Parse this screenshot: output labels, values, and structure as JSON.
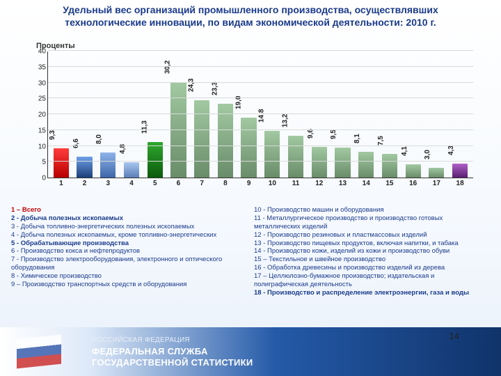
{
  "title": "Удельный вес организаций промышленного производства, осуществлявших технологические инновации, по видам экономической деятельности: 2010 г.",
  "ylabel": "Проценты",
  "page_number": "14",
  "chart": {
    "type": "bar",
    "ylim": [
      0,
      40
    ],
    "ytick_step": 5,
    "yticks": [
      0,
      5,
      10,
      15,
      20,
      25,
      30,
      35,
      40
    ],
    "grid_color": "#d9d9d9",
    "axis_color": "#333333",
    "bars": [
      {
        "x": "1",
        "v": 9.3,
        "label": "9,3",
        "fill": "linear-gradient(180deg,#ff3b3b,#b80000)"
      },
      {
        "x": "2",
        "v": 6.6,
        "label": "6,6",
        "fill": "linear-gradient(180deg,#6fa0e8,#1b3f7a)"
      },
      {
        "x": "3",
        "v": 8.0,
        "label": "8,0",
        "fill": "linear-gradient(180deg,#8fb4ea,#3e66a8)"
      },
      {
        "x": "4",
        "v": 4.8,
        "label": "4,8",
        "fill": "linear-gradient(180deg,#a8c6ee,#5a7fb8)"
      },
      {
        "x": "5",
        "v": 11.3,
        "label": "11,3",
        "fill": "linear-gradient(180deg,#2fa82f,#0c5a0c)"
      },
      {
        "x": "6",
        "v": 30.2,
        "label": "30,2",
        "fill": "linear-gradient(180deg,#a2c9a2,#698c69)"
      },
      {
        "x": "7",
        "v": 24.3,
        "label": "24,3",
        "fill": "linear-gradient(180deg,#a2c9a2,#698c69)"
      },
      {
        "x": "8",
        "v": 23.3,
        "label": "23,3",
        "fill": "linear-gradient(180deg,#a2c9a2,#698c69)"
      },
      {
        "x": "9",
        "v": 19.0,
        "label": "19,0",
        "fill": "linear-gradient(180deg,#a2c9a2,#698c69)"
      },
      {
        "x": "10",
        "v": 14.8,
        "label": "14,8",
        "fill": "linear-gradient(180deg,#a2c9a2,#698c69)"
      },
      {
        "x": "11",
        "v": 13.2,
        "label": "13,2",
        "fill": "linear-gradient(180deg,#a2c9a2,#698c69)"
      },
      {
        "x": "12",
        "v": 9.6,
        "label": "9,6",
        "fill": "linear-gradient(180deg,#a2c9a2,#698c69)"
      },
      {
        "x": "13",
        "v": 9.5,
        "label": "9,5",
        "fill": "linear-gradient(180deg,#a2c9a2,#698c69)"
      },
      {
        "x": "14",
        "v": 8.1,
        "label": "8,1",
        "fill": "linear-gradient(180deg,#a2c9a2,#698c69)"
      },
      {
        "x": "15",
        "v": 7.5,
        "label": "7,5",
        "fill": "linear-gradient(180deg,#a2c9a2,#698c69)"
      },
      {
        "x": "16",
        "v": 4.1,
        "label": "4,1",
        "fill": "linear-gradient(180deg,#a2c9a2,#698c69)"
      },
      {
        "x": "17",
        "v": 3.0,
        "label": "3,0",
        "fill": "linear-gradient(180deg,#a2c9a2,#698c69)"
      },
      {
        "x": "18",
        "v": 4.3,
        "label": "4,3",
        "fill": "linear-gradient(180deg,#b060c8,#5a1e72)"
      }
    ]
  },
  "legend_left": [
    {
      "t": "1 – Всего",
      "cls": "hl"
    },
    {
      "t": "2 - Добыча полезных ископаемых",
      "cls": "bold"
    },
    {
      "t": "3 - Добыча топливно-энергетических полезных ископаемых",
      "cls": ""
    },
    {
      "t": "4 - Добыча полезных ископаемых, кроме топливно-энергетических",
      "cls": ""
    },
    {
      "t": "5 - Обрабатывающие производства",
      "cls": "bold"
    },
    {
      "t": "6 - Производство кокса и нефтепродуктов",
      "cls": ""
    },
    {
      "t": "7 - Производство электрооборудования, электронного и оптического оборудования",
      "cls": ""
    },
    {
      "t": "8 - Химическое производство",
      "cls": ""
    },
    {
      "t": "9 – Производство транспортных средств и оборудования",
      "cls": ""
    }
  ],
  "legend_right": [
    {
      "t": "10 - Производство машин и оборудования",
      "cls": ""
    },
    {
      "t": "11 - Металлургическое производство и производство готовых металлических изделий",
      "cls": ""
    },
    {
      "t": "12 - Производство резиновых и пластмассовых изделий",
      "cls": ""
    },
    {
      "t": "13 - Производство пищевых продуктов, включая напитки, и табака",
      "cls": ""
    },
    {
      "t": "14 - Производство кожи, изделий из кожи и производство обуви",
      "cls": ""
    },
    {
      "t": "15 – Текстильное и швейное производство",
      "cls": ""
    },
    {
      "t": "16 - Обработка древесины и производство изделий из дерева",
      "cls": ""
    },
    {
      "t": "17 – Целлюлозно-бумажное производство; издательская и полиграфическая деятельность",
      "cls": ""
    },
    {
      "t": "18 - Производство и распределение электроэнергии, газа и воды",
      "cls": "bold"
    }
  ],
  "footer": {
    "line1": "РОССИЙСКАЯ ФЕДЕРАЦИЯ",
    "line2": "ФЕДЕРАЛЬНАЯ СЛУЖБА",
    "line3": "ГОСУДАРСТВЕННОЙ СТАТИСТИКИ"
  }
}
